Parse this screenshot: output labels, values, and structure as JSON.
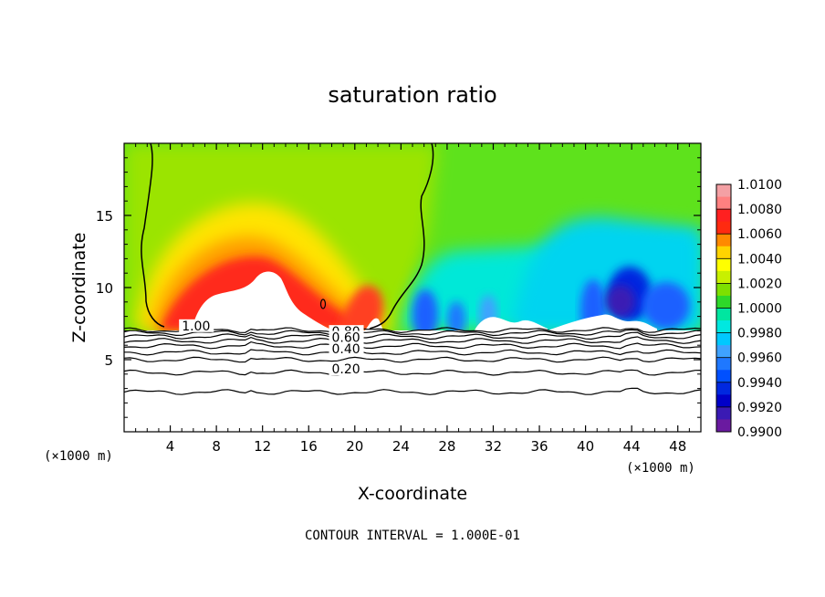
{
  "chart_data": {
    "type": "contour",
    "title": "saturation ratio",
    "xlabel": "X-coordinate",
    "ylabel": "Z-coordinate",
    "x_unit_left": "(×1000 m)",
    "x_unit_right": "(×1000 m)",
    "xlim": [
      0,
      50
    ],
    "ylim": [
      0,
      20
    ],
    "x_ticks": [
      4,
      8,
      12,
      16,
      20,
      24,
      28,
      32,
      36,
      40,
      44,
      48
    ],
    "y_ticks": [
      5,
      10,
      15
    ],
    "footer": "CONTOUR INTERVAL = 1.000E-01",
    "colorbar": {
      "levels": [
        "1.0100",
        "1.0080",
        "1.0060",
        "1.0040",
        "1.0020",
        "1.0000",
        "0.9980",
        "0.9960",
        "0.9940",
        "0.9920",
        "0.9900"
      ],
      "colors": [
        "#f4a0a4",
        "#ff8080",
        "#ff2020",
        "#ff2a10",
        "#ff8a00",
        "#ffd400",
        "#ffff00",
        "#c8f000",
        "#7ee000",
        "#2ed82a",
        "#00e6a0",
        "#00e8e0",
        "#00c8ff",
        "#3fa2ff",
        "#1f78ff",
        "#0050ff",
        "#0028e0",
        "#0000c8",
        "#3a1ab4",
        "#6a1aa0"
      ]
    },
    "contour_labels": [
      {
        "text": "1.00",
        "x": 5,
        "z": 7.1
      },
      {
        "text": "0.80",
        "x": 18,
        "z": 6.7
      },
      {
        "text": "0.60",
        "x": 18,
        "z": 6.3
      },
      {
        "text": "0.40",
        "x": 18,
        "z": 5.5
      },
      {
        "text": "0.20",
        "x": 18,
        "z": 4.1
      }
    ],
    "contour_levels": [
      0.2,
      0.3,
      0.4,
      0.5,
      0.6,
      0.7,
      0.8,
      0.9,
      1.0
    ],
    "saturated_region_base_z": 7.2
  }
}
